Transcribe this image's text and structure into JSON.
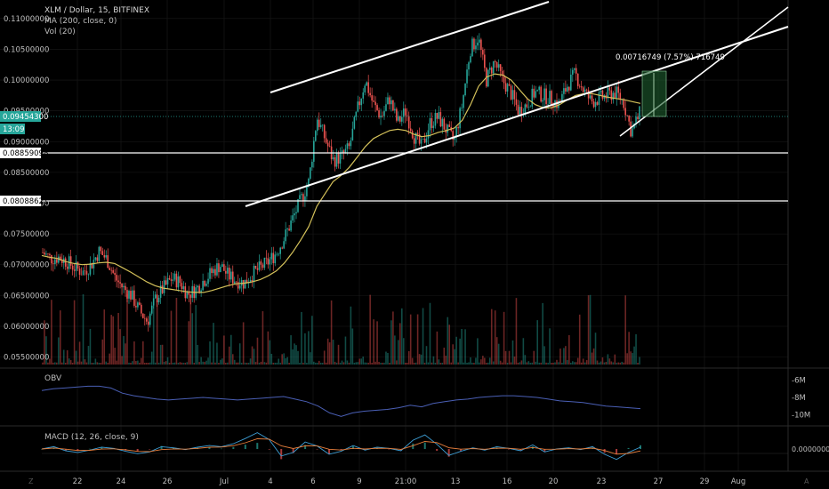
{
  "header": {
    "symbol_line": "XLM / Dollar, 15, BITFINEX",
    "ma_label": "MA (200, close, 0)",
    "vol_label": "Vol (20)"
  },
  "price_tags": {
    "current_price": "0.09454300",
    "countdown": "13:09",
    "support_1": "0.08859098",
    "support_2": "0.08088621"
  },
  "measurement_label": "0.00716749 (7.57%) 716749",
  "panes": {
    "obv_label": "OBV",
    "macd_label": "MACD (12, 26, close, 9)"
  },
  "chart_data": [
    {
      "type": "candlestick",
      "symbol": "XLM / Dollar",
      "interval": "15",
      "exchange": "BITFINEX",
      "x_ticks": [
        "22",
        "24",
        "26",
        "Jul",
        "4",
        "6",
        "9",
        "21:00",
        "13",
        "16",
        "20",
        "23",
        "27",
        "29",
        "Aug"
      ],
      "y_ticks": [
        "0.11000000",
        "0.10500000",
        "0.10000000",
        "0.09500000",
        "0.09000000",
        "0.08500000",
        "0.08000000",
        "0.07500000",
        "0.07000000",
        "0.06500000",
        "0.06000000",
        "0.05500000"
      ],
      "ylim": [
        0.0535,
        0.113
      ],
      "close_path": [
        0.072,
        0.071,
        0.0712,
        0.0705,
        0.0695,
        0.0688,
        0.07,
        0.0722,
        0.0708,
        0.0678,
        0.0662,
        0.065,
        0.0625,
        0.0608,
        0.0645,
        0.0662,
        0.0678,
        0.0672,
        0.0652,
        0.066,
        0.0675,
        0.0688,
        0.07,
        0.0682,
        0.0675,
        0.067,
        0.0685,
        0.0695,
        0.0705,
        0.072,
        0.0745,
        0.0775,
        0.0805,
        0.0835,
        0.094,
        0.0905,
        0.087,
        0.0875,
        0.089,
        0.095,
        0.1,
        0.096,
        0.094,
        0.097,
        0.093,
        0.095,
        0.091,
        0.089,
        0.093,
        0.094,
        0.092,
        0.09,
        0.096,
        0.105,
        0.107,
        0.1,
        0.103,
        0.1,
        0.098,
        0.095,
        0.096,
        0.098,
        0.0975,
        0.097,
        0.096,
        0.099,
        0.101,
        0.0985,
        0.0965,
        0.097,
        0.0975,
        0.098,
        0.0965,
        0.0915,
        0.0945
      ],
      "ma200_path": [
        0.0715,
        0.0712,
        0.071,
        0.0705,
        0.0702,
        0.07,
        0.0701,
        0.0703,
        0.0704,
        0.0702,
        0.0695,
        0.0688,
        0.068,
        0.0672,
        0.0666,
        0.0662,
        0.066,
        0.0658,
        0.0656,
        0.0655,
        0.0655,
        0.0658,
        0.0662,
        0.0666,
        0.0669,
        0.067,
        0.0672,
        0.0676,
        0.0682,
        0.069,
        0.0703,
        0.072,
        0.074,
        0.0762,
        0.0795,
        0.0815,
        0.0835,
        0.0845,
        0.0858,
        0.0875,
        0.0892,
        0.0905,
        0.0912,
        0.0918,
        0.092,
        0.0918,
        0.0912,
        0.0908,
        0.091,
        0.0915,
        0.0918,
        0.0922,
        0.0935,
        0.096,
        0.099,
        0.1005,
        0.101,
        0.1008,
        0.1,
        0.0985,
        0.097,
        0.096,
        0.0955,
        0.0955,
        0.096,
        0.0968,
        0.0975,
        0.0978,
        0.0978,
        0.0975,
        0.0972,
        0.097,
        0.0968,
        0.0965,
        0.0962
      ],
      "horizontal_lines": [
        0.08859098,
        0.08088621,
        0.094543
      ],
      "trendlines": [
        {
          "from": [
            "9",
            0.0995
          ],
          "to": [
            "23",
            0.1125
          ]
        },
        {
          "from": [
            "6",
            0.0805
          ],
          "to": [
            "Aug+",
            0.1045
          ]
        },
        {
          "from": [
            "27",
            0.0915
          ],
          "to": [
            "Aug+",
            0.1115
          ]
        }
      ],
      "measurement": {
        "from": 0.094543,
        "to": 0.10171,
        "change": "0.00716749 (7.57%) 716749"
      }
    },
    {
      "type": "line",
      "name": "OBV",
      "y_ticks": [
        "-6M",
        "-8M",
        "-10M"
      ],
      "ylim": [
        -11,
        -5
      ],
      "values": [
        -7.2,
        -7.0,
        -6.9,
        -6.8,
        -6.7,
        -6.7,
        -6.9,
        -7.5,
        -7.8,
        -8.0,
        -8.2,
        -8.3,
        -8.2,
        -8.1,
        -8.0,
        -8.1,
        -8.2,
        -8.3,
        -8.2,
        -8.1,
        -8.0,
        -7.9,
        -8.2,
        -8.5,
        -9.0,
        -9.8,
        -10.2,
        -9.8,
        -9.6,
        -9.5,
        -9.4,
        -9.2,
        -8.9,
        -9.1,
        -8.7,
        -8.5,
        -8.3,
        -8.2,
        -8.0,
        -7.9,
        -7.8,
        -7.8,
        -7.9,
        -8.0,
        -8.2,
        -8.4,
        -8.5,
        -8.6,
        -8.8,
        -9.0,
        -9.1,
        -9.2,
        -9.3
      ]
    },
    {
      "type": "line",
      "name": "MACD (12, 26, close, 9)",
      "y_ticks": [
        "0.00000000"
      ],
      "ylim": [
        -0.0035,
        0.0035
      ],
      "values": [
        0.0,
        0.0004,
        -0.0003,
        -0.0006,
        -0.0002,
        0.0003,
        0.0001,
        -0.0004,
        -0.0008,
        -0.0005,
        0.0004,
        0.0002,
        -0.0001,
        0.0003,
        0.0006,
        0.0004,
        0.0009,
        0.0018,
        0.0028,
        0.0016,
        -0.0012,
        -0.0006,
        0.0012,
        0.0005,
        -0.0009,
        -0.0004,
        0.0006,
        -0.0002,
        0.0003,
        0.0001,
        -0.0003,
        0.0015,
        0.0024,
        0.0008,
        -0.0011,
        -0.0004,
        0.0002,
        -0.0002,
        0.0004,
        0.0001,
        -0.0003,
        0.0007,
        -0.0005,
        0.0,
        0.0002,
        -0.0001,
        0.0004,
        -0.0009,
        -0.0018,
        -0.0006,
        0.0003
      ]
    }
  ],
  "colors": {
    "background": "#000000",
    "grid": "#1a1a1a",
    "bull": "#26a69a",
    "bear": "#ef5350",
    "ma": "#d4c15a",
    "obv": "#4a5fb5",
    "trendline": "#ffffff",
    "tag_bg": "#26a69a",
    "measure_fill": "#1e5d2f"
  },
  "bottom_axis": {
    "tz_button": "Z",
    "auto_button": "A"
  }
}
